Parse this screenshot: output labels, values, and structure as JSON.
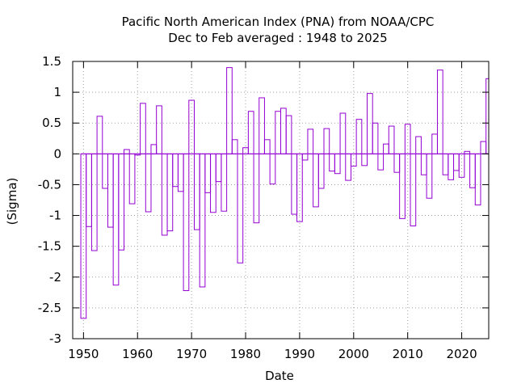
{
  "chart_data": {
    "type": "bar",
    "style": "outlined histogram steps",
    "title": "Pacific North American Index (PNA) from NOAA/CPC",
    "subtitle": "Dec to Feb averaged : 1948 to 2025",
    "xlabel": "Date",
    "ylabel": "(Sigma)",
    "xlim": [
      1948,
      2025
    ],
    "ylim": [
      -3,
      1.5
    ],
    "x_ticks": [
      "1950",
      "1960",
      "1970",
      "1980",
      "1990",
      "2000",
      "2010",
      "2020"
    ],
    "y_ticks": [
      "-3",
      "-2.5",
      "-2",
      "-1.5",
      "-1",
      "-0.5",
      "0",
      "0.5",
      "1",
      "1.5"
    ],
    "grid": true,
    "legend": "none",
    "series_color": "#9400d3",
    "series": [
      {
        "x": [
          1950,
          1951,
          1952,
          1953,
          1954,
          1955,
          1956,
          1957,
          1958,
          1959,
          1960,
          1961,
          1962,
          1963,
          1964,
          1965,
          1966,
          1967,
          1968,
          1969,
          1970,
          1971,
          1972,
          1973,
          1974,
          1975,
          1976,
          1977,
          1978,
          1979,
          1980,
          1981,
          1982,
          1983,
          1984,
          1985,
          1986,
          1987,
          1988,
          1989,
          1990,
          1991,
          1992,
          1993,
          1994,
          1995,
          1996,
          1997,
          1998,
          1999,
          2000,
          2001,
          2002,
          2003,
          2004,
          2005,
          2006,
          2007,
          2008,
          2009,
          2010,
          2011,
          2012,
          2013,
          2014,
          2015,
          2016,
          2017,
          2018,
          2019,
          2020,
          2021,
          2022,
          2023,
          2024,
          2025
        ],
        "values": [
          -2.67,
          -1.18,
          -1.57,
          0.61,
          -0.56,
          -1.19,
          -2.13,
          -1.56,
          0.07,
          -0.81,
          -0.02,
          0.82,
          -0.94,
          0.15,
          0.78,
          -1.32,
          -1.25,
          -0.53,
          -0.61,
          -2.22,
          0.87,
          -1.23,
          -2.16,
          -0.63,
          -0.95,
          -0.45,
          -0.93,
          1.4,
          0.23,
          -1.77,
          0.1,
          0.69,
          -1.12,
          0.91,
          0.23,
          -0.49,
          0.69,
          0.74,
          0.62,
          -0.98,
          -1.1,
          -0.1,
          0.4,
          -0.86,
          -0.56,
          0.41,
          -0.28,
          -0.32,
          0.66,
          -0.43,
          -0.2,
          0.56,
          -0.19,
          0.98,
          0.5,
          -0.26,
          0.16,
          0.45,
          -0.3,
          -1.05,
          0.48,
          -1.17,
          0.28,
          -0.34,
          -0.72,
          0.32,
          1.36,
          -0.34,
          -0.42,
          -0.27,
          -0.38,
          0.04,
          -0.55,
          -0.83,
          0.2,
          1.22
        ]
      }
    ]
  }
}
